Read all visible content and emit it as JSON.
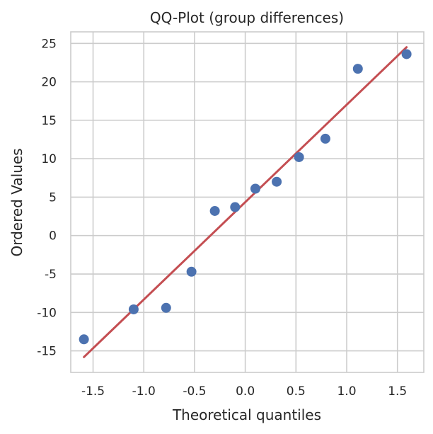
{
  "chart_data": {
    "type": "scatter",
    "title": "QQ-Plot (group differences)",
    "xlabel": "Theoretical quantiles",
    "ylabel": "Ordered Values",
    "xlim": [
      -1.72,
      1.76
    ],
    "ylim": [
      -17.8,
      26.5
    ],
    "xticks": [
      -1.5,
      -1.0,
      -0.5,
      0.0,
      0.5,
      1.0,
      1.5
    ],
    "xtick_labels": [
      "-1.5",
      "-1.0",
      "-0.5",
      "0.0",
      "0.5",
      "1.0",
      "1.5"
    ],
    "yticks": [
      -15,
      -10,
      -5,
      0,
      5,
      10,
      15,
      20,
      25
    ],
    "ytick_labels": [
      "-15",
      "-10",
      "-5",
      "0",
      "5",
      "10",
      "15",
      "20",
      "25"
    ],
    "grid": true,
    "series": [
      {
        "kind": "points",
        "color": "#4c72b0",
        "x": [
          -1.59,
          -1.1,
          -0.78,
          -0.53,
          -0.3,
          -0.1,
          0.1,
          0.31,
          0.53,
          0.79,
          1.11,
          1.59
        ],
        "y": [
          -13.5,
          -9.6,
          -9.4,
          -4.7,
          3.2,
          3.7,
          6.1,
          7.0,
          10.2,
          12.6,
          21.7,
          23.6
        ]
      },
      {
        "kind": "fit-line",
        "color": "#c44e52",
        "x": [
          -1.59,
          1.59
        ],
        "y": [
          -15.8,
          24.5
        ]
      }
    ]
  }
}
